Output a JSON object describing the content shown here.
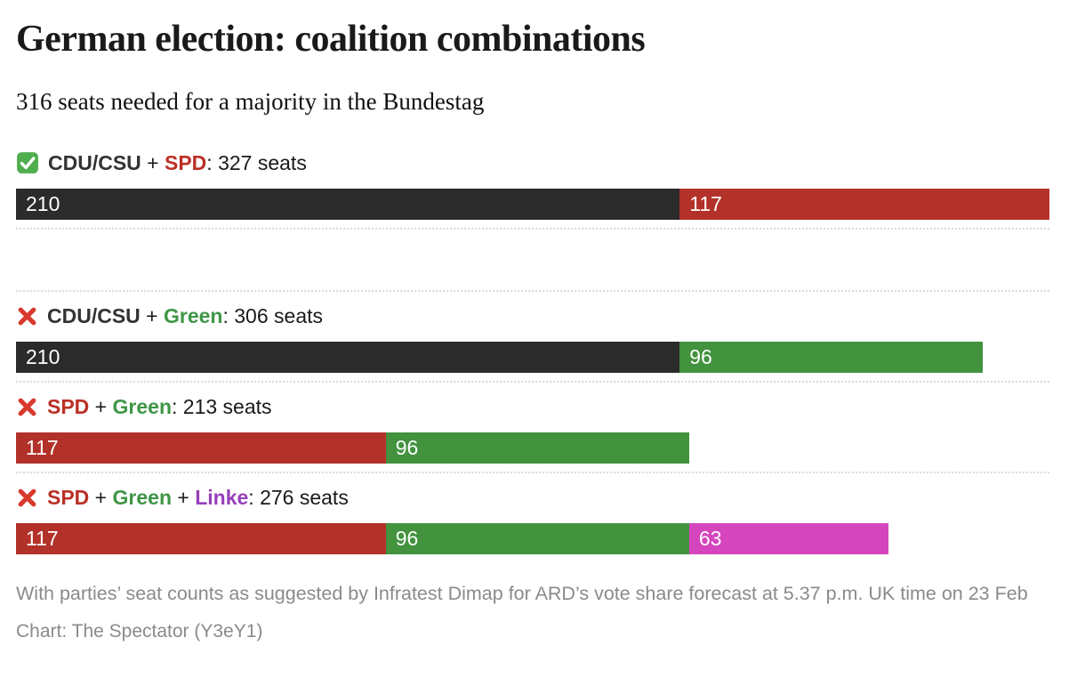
{
  "title": "German election: coalition combinations",
  "subtitle": "316 seats needed for a majority in the Bundestag",
  "chart_data": {
    "type": "bar",
    "variant": "horizontal-stacked",
    "unit": "seats",
    "majority_needed": 316,
    "scale_max_seats": 327,
    "legend_position": "none",
    "grid": false,
    "parties": [
      {
        "name": "CDU/CSU",
        "bar_color": "#2B2B2B",
        "label_color": "#333333"
      },
      {
        "name": "SPD",
        "bar_color": "#B23229",
        "label_color": "#BA3026"
      },
      {
        "name": "Green",
        "bar_color": "#42923E",
        "label_color": "#3F9646"
      },
      {
        "name": "Linke",
        "bar_color": "#D546BE",
        "label_color": "#963EB9"
      }
    ],
    "coalitions": [
      {
        "icon": "check",
        "result": "majority",
        "total": 327,
        "suffix": "seats",
        "segments": [
          {
            "party": "CDU/CSU",
            "seats": 210
          },
          {
            "party": "SPD",
            "seats": 117
          }
        ]
      },
      {
        "icon": "cross",
        "result": "no-majority",
        "total": 306,
        "suffix": "seats",
        "segments": [
          {
            "party": "CDU/CSU",
            "seats": 210
          },
          {
            "party": "Green",
            "seats": 96
          }
        ]
      },
      {
        "icon": "cross",
        "result": "no-majority",
        "total": 213,
        "suffix": "seats",
        "segments": [
          {
            "party": "SPD",
            "seats": 117
          },
          {
            "party": "Green",
            "seats": 96
          }
        ]
      },
      {
        "icon": "cross",
        "result": "no-majority",
        "total": 276,
        "suffix": "seats",
        "segments": [
          {
            "party": "SPD",
            "seats": 117
          },
          {
            "party": "Green",
            "seats": 96
          },
          {
            "party": "Linke",
            "seats": 63
          }
        ]
      }
    ],
    "colors": {
      "check_green": "#4FAE4E",
      "cross_red": "#D8392D",
      "separator": "#DADADA",
      "bar_value_text": "#FFFFFF",
      "label_text": "#1A1A1A",
      "notes_gray": "#8A8A8A"
    },
    "label_joiner": " + ",
    "label_colon": ": "
  },
  "notes": "With parties’ seat counts as suggested by Infratest Dimap for ARD’s vote share forecast at 5.37 p.m. UK time on 23 Feb",
  "credit": "Chart: The Spectator (Y3eY1)"
}
